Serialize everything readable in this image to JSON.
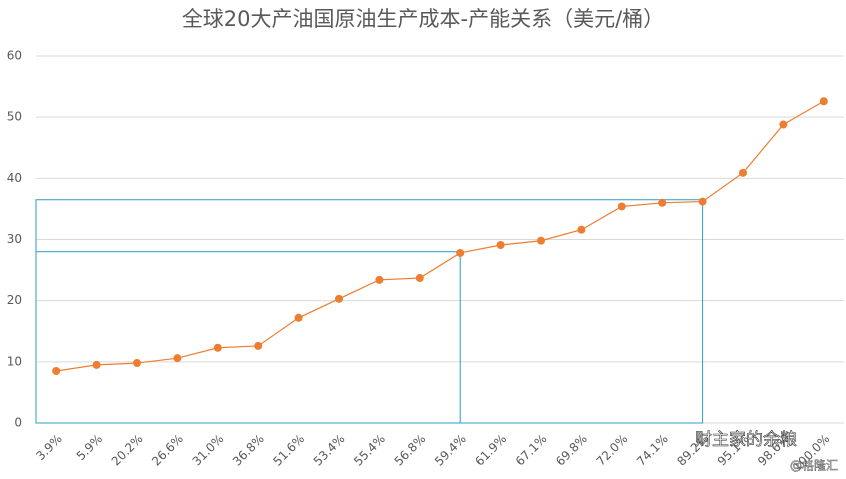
{
  "chart_data": {
    "type": "line",
    "title": "全球20大产油国原油生产成本-产能关系（美元/桶）",
    "categories": [
      "3.9%",
      "5.9%",
      "20.2%",
      "26.6%",
      "31.0%",
      "36.8%",
      "51.6%",
      "53.4%",
      "55.4%",
      "56.8%",
      "59.4%",
      "61.9%",
      "67.1%",
      "69.8%",
      "72.0%",
      "74.1%",
      "89.2%",
      "95.1%",
      "98.6%",
      "100.0%"
    ],
    "series": [
      {
        "name": "生产成本",
        "color": "#ed7d31",
        "values": [
          8.5,
          9.5,
          9.8,
          10.6,
          12.3,
          12.6,
          17.2,
          20.3,
          23.4,
          23.7,
          27.8,
          29.1,
          29.8,
          31.6,
          35.4,
          36.0,
          36.2,
          40.9,
          48.8,
          52.6
        ]
      }
    ],
    "highlights": [
      {
        "category": "59.4%",
        "value": 28,
        "color": "#2e9cc8"
      },
      {
        "category": "89.2%",
        "value": 36.5,
        "color": "#2e9cc8"
      }
    ],
    "ylim": [
      0,
      60
    ],
    "yticks": [
      0,
      10,
      20,
      30,
      40,
      50,
      60
    ],
    "grid": true,
    "watermark": [
      "财主家的余粮",
      "@格隆汇"
    ]
  }
}
